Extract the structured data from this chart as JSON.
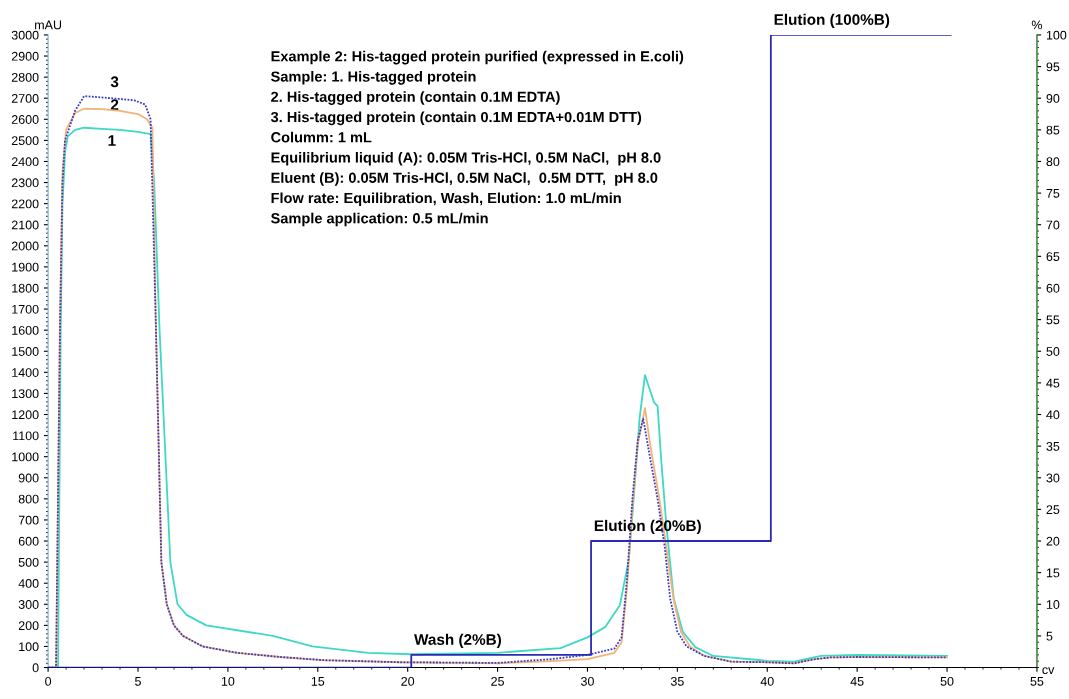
{
  "chart_data": {
    "type": "line",
    "xlabel": "cv",
    "ylabel": "mAU",
    "y2label": "%",
    "xlim": [
      0,
      55
    ],
    "xticks": [
      0,
      5,
      10,
      15,
      20,
      25,
      30,
      35,
      40,
      45,
      50,
      55
    ],
    "ylim": [
      0,
      3000
    ],
    "yticks": [
      0,
      100,
      200,
      300,
      400,
      500,
      600,
      700,
      800,
      900,
      1000,
      1100,
      1200,
      1300,
      1400,
      1500,
      1600,
      1700,
      1800,
      1900,
      2000,
      2100,
      2200,
      2300,
      2400,
      2500,
      2600,
      2700,
      2800,
      2900,
      3000
    ],
    "y2lim": [
      0,
      100
    ],
    "y2ticks": [
      5,
      10,
      15,
      20,
      25,
      30,
      35,
      40,
      45,
      50,
      55,
      60,
      65,
      70,
      75,
      80,
      85,
      90,
      95,
      100
    ],
    "grid": false,
    "legend": false,
    "marker": "none",
    "series": [
      {
        "name": "1",
        "color": "#3fd8c4",
        "line_style": "solid",
        "x": [
          0,
          0.55,
          0.7,
          0.8,
          0.95,
          1.1,
          1.5,
          2.0,
          3.0,
          4.0,
          5.0,
          5.7,
          5.9,
          6.2,
          6.8,
          7.2,
          7.7,
          8.8,
          12.5,
          14.7,
          17.8,
          20.2,
          25,
          28.5,
          30,
          31,
          31.8,
          32.3,
          32.6,
          32.9,
          33.2,
          33.5,
          33.7,
          33.9,
          34.1,
          34.4,
          34.8,
          35.3,
          36,
          37,
          40,
          41.5,
          42,
          43,
          45,
          50
        ],
        "values": [
          0,
          0,
          1600,
          2200,
          2450,
          2520,
          2550,
          2560,
          2555,
          2550,
          2540,
          2530,
          2300,
          1600,
          500,
          300,
          250,
          200,
          150,
          100,
          70,
          63,
          70,
          92,
          143,
          193,
          295,
          511,
          834,
          1184,
          1387,
          1309,
          1258,
          1240,
          986,
          664,
          327,
          170,
          97,
          55,
          32,
          28,
          37,
          55,
          60,
          55
        ]
      },
      {
        "name": "2",
        "color": "#f0b478",
        "line_style": "solid",
        "x": [
          0,
          0.45,
          0.65,
          0.8,
          1.0,
          1.5,
          2.0,
          3.0,
          4.0,
          5.0,
          5.5,
          5.8,
          6.0,
          6.3,
          6.6,
          7.0,
          7.5,
          8.6,
          10.5,
          12.9,
          15.3,
          19.6,
          25,
          28,
          30,
          31.5,
          31.9,
          32.2,
          32.5,
          32.8,
          33.2,
          33.5,
          34.0,
          34.4,
          34.8,
          35.2,
          35.7,
          36.5,
          38,
          40,
          41.5,
          42.5,
          43.5,
          45,
          50
        ],
        "values": [
          0,
          0,
          1600,
          2350,
          2550,
          2630,
          2650,
          2648,
          2640,
          2625,
          2600,
          2560,
          1600,
          500,
          300,
          200,
          150,
          100,
          70,
          50,
          35,
          25,
          20,
          30,
          40,
          70,
          120,
          380,
          760,
          1060,
          1230,
          1050,
          800,
          560,
          320,
          170,
          100,
          55,
          28,
          25,
          20,
          38,
          48,
          50,
          48
        ]
      },
      {
        "name": "3",
        "color": "#3a3ac8",
        "line_style": "dotted",
        "x": [
          0,
          0.44,
          0.66,
          0.8,
          0.94,
          1.5,
          2.0,
          3.5,
          4.8,
          5.4,
          5.7,
          6.0,
          6.3,
          6.6,
          7.0,
          7.5,
          8.6,
          10.5,
          12.9,
          15.3,
          19.6,
          25,
          28,
          30,
          31.5,
          31.9,
          32.2,
          32.5,
          32.8,
          33.1,
          33.5,
          33.9,
          34.3,
          34.6,
          35,
          35.5,
          36.5,
          38,
          40,
          41.5,
          42.5,
          43.5,
          45,
          50
        ],
        "values": [
          0,
          0,
          1600,
          2300,
          2500,
          2640,
          2710,
          2700,
          2690,
          2670,
          2600,
          1600,
          500,
          300,
          200,
          150,
          100,
          70,
          50,
          35,
          25,
          22,
          40,
          60,
          90,
          143,
          420,
          800,
          1078,
          1180,
          986,
          800,
          571,
          327,
          170,
          101,
          55,
          28,
          25,
          20,
          38,
          48,
          50,
          48
        ]
      },
      {
        "type": "step",
        "axis": "y2",
        "color": "#2a2ab4",
        "line_style": "solid",
        "x": [
          0,
          20.2,
          30.2,
          40.2,
          50.2
        ],
        "values": [
          0,
          2,
          20,
          100,
          100
        ]
      }
    ],
    "annotations": [
      "Wash (2%B)",
      "Elution (20%B)",
      "Elution (100%B)",
      "Example 2: His-tagged protein purified (expressed in E.coli)",
      "Sample: 1. His-tagged protein",
      "2. His-tagged protein (contain 0.1M EDTA)",
      "3. His-tagged protein (contain 0.1M EDTA+0.01M DTT)",
      "Columm: 1 mL",
      "Equilibrium liquid (A): 0.05M Tris-HCl, 0.5M NaCl,  pH 8.0",
      "Eluent (B): 0.05M Tris-HCl, 0.5M NaCl,  0.5M DTT,  pH 8.0",
      "Flow rate: Equilibration, Wash, Elution: 1.0 mL/min",
      "Sample application: 0.5 mL/min"
    ]
  }
}
